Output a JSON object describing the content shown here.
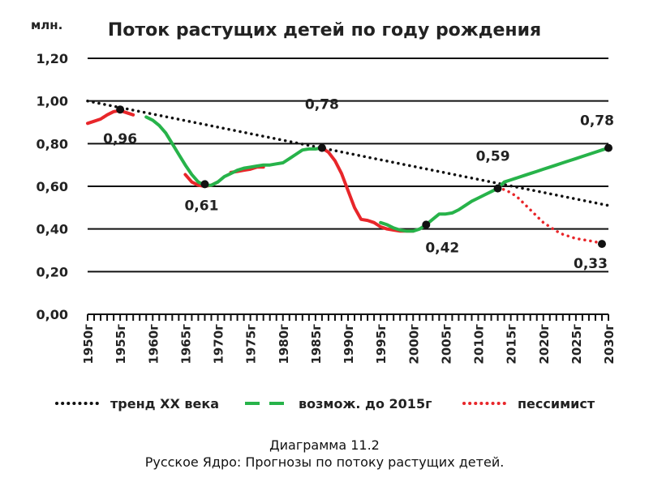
{
  "chart_data": {
    "type": "line",
    "title": "Поток растущих детей по году рождения",
    "unit_label": "млн.",
    "ylim": [
      0,
      1.2
    ],
    "yticks": [
      0,
      0.2,
      0.4,
      0.6,
      0.8,
      1.0,
      1.2
    ],
    "ytick_labels": [
      "0,00",
      "0,20",
      "0,40",
      "0,60",
      "0,80",
      "1,00",
      "1,20"
    ],
    "xlim": [
      1950,
      2030
    ],
    "xtick_labels": [
      "1950г",
      "1955г",
      "1960г",
      "1965г",
      "1970г",
      "1975г",
      "1980г",
      "1985г",
      "1990г",
      "1995г",
      "2000г",
      "2005г",
      "2010г",
      "2015г",
      "2020г",
      "2025г",
      "2030г"
    ],
    "xtick_values": [
      1950,
      1955,
      1960,
      1965,
      1970,
      1975,
      1980,
      1985,
      1990,
      1995,
      2000,
      2005,
      2010,
      2015,
      2020,
      2025,
      2030
    ],
    "grid": "horizontal",
    "legend_position": "bottom",
    "series": [
      {
        "name": "тренд XX века",
        "color": "#111111",
        "style": "dotted",
        "x": [
          1950,
          2030
        ],
        "y": [
          1.0,
          0.51
        ]
      },
      {
        "name": "возмож. до 2015г",
        "color": "#27b34a",
        "style": "solid",
        "x": [
          1955,
          1957,
          1959,
          1960,
          1961,
          1962,
          1963,
          1964,
          1965,
          1966,
          1967,
          1968,
          1969,
          1970,
          1971,
          1972,
          1973,
          1974,
          1975,
          1976,
          1977,
          1978,
          1979,
          1980,
          1981,
          1982,
          1983,
          1984,
          1985,
          1986,
          1995,
          1996,
          1997,
          1998,
          1999,
          2000,
          2001,
          2002,
          2003,
          2004,
          2005,
          2006,
          2007,
          2008,
          2009,
          2010,
          2011,
          2012,
          2013,
          2014,
          2015,
          2016,
          2017,
          2018,
          2019,
          2020,
          2021,
          2022,
          2023,
          2024,
          2025,
          2026,
          2027,
          2028,
          2029,
          2030
        ],
        "y": [
          0.94,
          0.935,
          0.925,
          0.91,
          0.885,
          0.85,
          0.8,
          0.75,
          0.7,
          0.655,
          0.62,
          0.605,
          0.605,
          0.62,
          0.645,
          0.66,
          0.675,
          0.685,
          0.69,
          0.695,
          0.7,
          0.7,
          0.705,
          0.71,
          0.73,
          0.75,
          0.77,
          0.775,
          0.775,
          0.78,
          0.43,
          0.42,
          0.405,
          0.395,
          0.39,
          0.39,
          0.4,
          0.42,
          0.445,
          0.47,
          0.47,
          0.475,
          0.49,
          0.51,
          0.53,
          0.545,
          0.56,
          0.575,
          0.59,
          0.62,
          0.63,
          0.64,
          0.65,
          0.66,
          0.67,
          0.68,
          0.69,
          0.7,
          0.71,
          0.72,
          0.73,
          0.74,
          0.75,
          0.76,
          0.77,
          0.78
        ]
      },
      {
        "name": "red_solid",
        "color": "#e8262a",
        "style": "solid",
        "segments": [
          {
            "x": [
              1950,
              1951,
              1952,
              1953,
              1954,
              1955,
              1956,
              1957
            ],
            "y": [
              0.895,
              0.905,
              0.915,
              0.935,
              0.95,
              0.955,
              0.945,
              0.935
            ]
          },
          {
            "x": [
              1965,
              1966,
              1967,
              1968,
              1969,
              1970
            ],
            "y": [
              0.655,
              0.62,
              0.605,
              0.6,
              0.605,
              0.62
            ]
          },
          {
            "x": [
              1972,
              1973,
              1974,
              1975,
              1976,
              1977
            ],
            "y": [
              0.665,
              0.67,
              0.675,
              0.68,
              0.69,
              0.69
            ]
          },
          {
            "x": [
              1986,
              1987,
              1988,
              1989,
              1990,
              1991,
              1992,
              1993,
              1994,
              1995,
              1996,
              1997,
              1998,
              1999,
              2000
            ],
            "y": [
              0.78,
              0.76,
              0.72,
              0.66,
              0.58,
              0.5,
              0.445,
              0.44,
              0.43,
              0.41,
              0.4,
              0.395,
              0.39,
              0.39,
              0.39
            ]
          }
        ]
      },
      {
        "name": "пессимист",
        "color": "#e8262a",
        "style": "dotted",
        "x": [
          2013,
          2014,
          2015,
          2016,
          2017,
          2018,
          2019,
          2020,
          2021,
          2022,
          2023,
          2024,
          2025,
          2026,
          2027,
          2028,
          2029
        ],
        "y": [
          0.59,
          0.585,
          0.57,
          0.55,
          0.52,
          0.49,
          0.46,
          0.43,
          0.41,
          0.39,
          0.375,
          0.365,
          0.355,
          0.35,
          0.345,
          0.34,
          0.33
        ]
      }
    ],
    "markers": [
      {
        "x": 1955,
        "y": 0.96,
        "label": "0,96"
      },
      {
        "x": 1968,
        "y": 0.61,
        "label": "0,61"
      },
      {
        "x": 1986,
        "y": 0.78,
        "label": "0,78"
      },
      {
        "x": 2002,
        "y": 0.42,
        "label": "0,42"
      },
      {
        "x": 2013,
        "y": 0.59,
        "label": "0,59"
      },
      {
        "x": 2030,
        "y": 0.78,
        "label": "0,78"
      },
      {
        "x": 2029,
        "y": 0.33,
        "label": "0,33"
      }
    ],
    "legend": [
      {
        "label": "тренд XX века",
        "style": "dotted",
        "color": "#111111"
      },
      {
        "label": "возмож.  до 2015г",
        "style": "dashed",
        "color": "#27b34a"
      },
      {
        "label": "пессимист",
        "style": "dotted",
        "color": "#e8262a"
      }
    ]
  },
  "caption": {
    "line1": "Диаграмма 11.2",
    "line2": "Русское Ядро: Прогнозы по потоку растущих детей."
  }
}
